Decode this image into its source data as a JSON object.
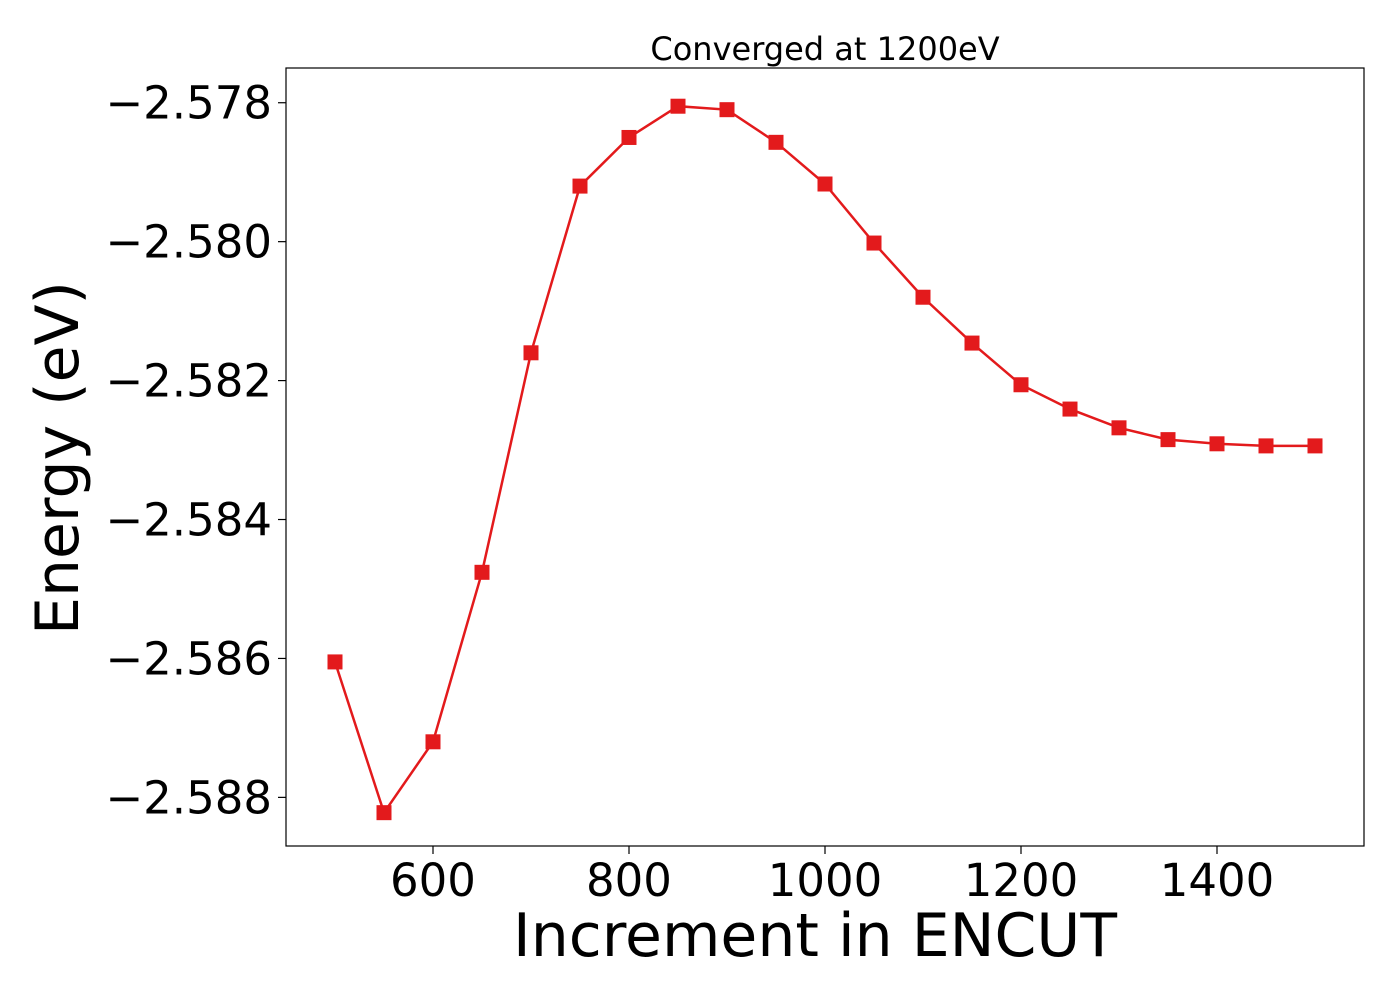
{
  "chart_data": {
    "type": "line",
    "title": "Converged at 1200eV",
    "xlabel": "Increment in ENCUT",
    "ylabel": "Energy (eV)",
    "xlim": [
      450,
      1550
    ],
    "ylim": [
      -2.5887,
      -2.5775
    ],
    "x_ticks": [
      600,
      800,
      1000,
      1200,
      1400
    ],
    "x_tick_labels": [
      "600",
      "800",
      "1000",
      "1200",
      "1400"
    ],
    "y_ticks": [
      -2.578,
      -2.58,
      -2.582,
      -2.584,
      -2.586,
      -2.588
    ],
    "y_tick_labels": [
      "−2.578",
      "−2.580",
      "−2.582",
      "−2.584",
      "−2.586",
      "−2.588"
    ],
    "grid": false,
    "marker": "square",
    "color": "#e31a1c",
    "series": [
      {
        "x": [
          500,
          550,
          600,
          650,
          700,
          750,
          800,
          850,
          900,
          950,
          1000,
          1050,
          1100,
          1150,
          1200,
          1250,
          1300,
          1350,
          1400,
          1450,
          1500
        ],
        "values": [
          -2.58605,
          -2.58822,
          -2.5872,
          -2.58476,
          -2.5816,
          -2.5792,
          -2.5785,
          -2.57805,
          -2.5781,
          -2.57857,
          -2.57917,
          -2.58002,
          -2.5808,
          -2.58146,
          -2.58206,
          -2.58241,
          -2.58268,
          -2.58285,
          -2.58291,
          -2.58294,
          -2.58294
        ]
      }
    ]
  }
}
